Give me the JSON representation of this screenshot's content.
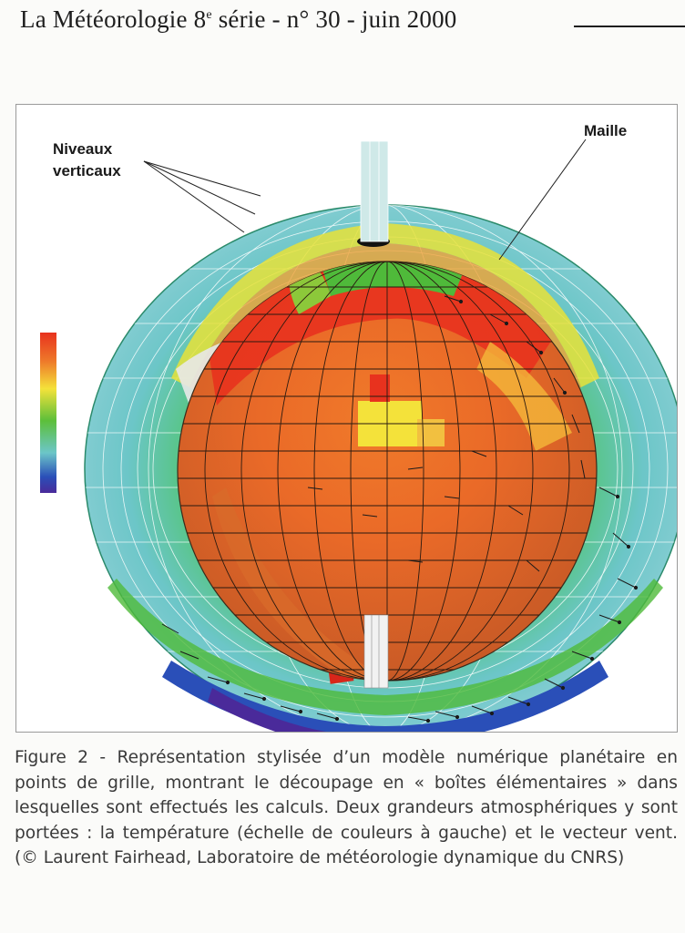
{
  "header": {
    "journal": "La Météorologie 8",
    "series_sup": "e",
    "issue": " série - n° 30 - juin 2000"
  },
  "figure": {
    "label_vertical_levels_line1": "Niveaux",
    "label_vertical_levels_line2": "verticaux",
    "label_mesh": "Maille",
    "colors": {
      "red": "#e8321e",
      "orange": "#ee7a2a",
      "yellow": "#f4e23a",
      "green": "#5cbf3a",
      "cyan": "#6cc6c8",
      "blue": "#2a4fb8",
      "purple": "#4a2a9a"
    }
  },
  "caption": {
    "text": "Figure 2 - Représentation stylisée d’un modèle numérique planétaire en points de grille, montrant le découpage en « boîtes élémentaires » dans lesquelles sont effectués les calculs. Deux grandeurs atmosphériques y sont portées : la température (échelle de couleurs à gauche) et le vecteur vent. (© Laurent Fairhead, Laboratoire de météorologie dynamique du CNRS)"
  }
}
